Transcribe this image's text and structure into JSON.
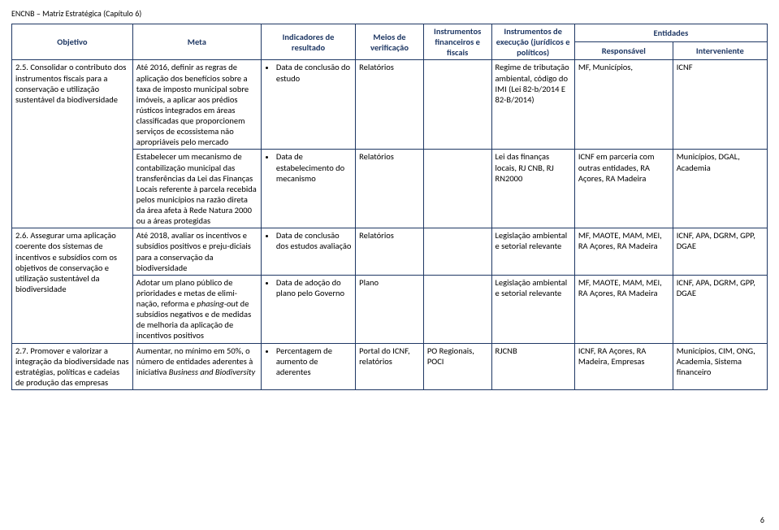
{
  "doc_header": "ENCNB – Matriz Estratégica (Capítulo 6)",
  "page_number": "6",
  "columns": {
    "objetivo": "Objetivo",
    "meta": "Meta",
    "indicadores": "Indicadores de resultado",
    "meios": "Meios de verificação",
    "instr_fin": "Instrumentos financeiros e fiscais",
    "instr_exec": "Instrumentos de execução (jurídicos e políticos)",
    "entidades": "Entidades",
    "responsavel": "Responsável",
    "interveniente": "Interveniente"
  },
  "col_widths": {
    "objetivo": "16%",
    "meta": "17%",
    "indicadores": "12.5%",
    "meios": "9%",
    "instr_fin": "9%",
    "instr_exec": "11%",
    "responsavel": "13%",
    "interveniente": "12.5%"
  },
  "rows": [
    {
      "objetivo": "2.5. Consolidar o contributo dos instrumentos fiscais para a conservação e utilização sustentável da biodiversidade",
      "objetivo_rowspan": 2,
      "meta": "Até 2016, definir as regras de aplicação dos benefícios sobre a taxa de imposto municipal sobre imóveis, a aplicar aos prédios rústicos integrados em áreas classificadas que proporcionem serviços de ecossistema não apropriáveis pelo mercado",
      "indicador": "Data de conclusão do estudo",
      "meios": "Relatórios",
      "instr_fin": "",
      "instr_exec": "Regime de tributação ambiental, código do IMI (Lei 82-b/2014 E 82-B/2014)",
      "responsavel": "MF, Municípios,",
      "interveniente": "ICNF"
    },
    {
      "meta": "Estabelecer um mecanismo de contabilização municipal das transferências da Lei das Finanças Locais referente à parcela recebida pelos municípios na razão direta da área afeta à Rede Natura 2000 ou a áreas protegidas",
      "indicador": "Data de estabelecimento do mecanismo",
      "meios": "Relatórios",
      "instr_fin": "",
      "instr_exec": "Lei das finanças locais, RJ CNB, RJ RN2000",
      "responsavel": "ICNF em parceria com outras entidades, RA Açores, RA Madeira",
      "interveniente": "Municípios, DGAL, Academia"
    },
    {
      "objetivo": "2.6. Assegurar uma aplicação coerente dos sistemas de incentivos e subsídios com os objetivos de conservação e utilização sustentável da biodiversidade",
      "objetivo_rowspan": 2,
      "meta": "Até 2018, avaliar os incentivos e subsídios positivos e preju-diciais para a conservação da biodiversidade",
      "indicador": "Data de conclusão dos estudos avaliação",
      "meios": "Relatórios",
      "instr_fin": "",
      "instr_exec": "Legislação ambiental e setorial relevante",
      "responsavel": "MF, MAOTE, MAM, MEI, RA Açores, RA Madeira",
      "interveniente": "ICNF, APA, DGRM, GPP, DGAE"
    },
    {
      "meta_html": true,
      "meta_prefix": "Adotar um plano público de prioridades e metas de elimi-nação, reforma e ",
      "meta_italic": "phasing-out",
      "meta_suffix": " de subsídios negativos e de medidas de melhoria da aplicação de incentivos positivos",
      "indicador": "Data de adoção do plano pelo Governo",
      "meios": "Plano",
      "instr_fin": "",
      "instr_exec": "Legislação ambiental e setorial relevante",
      "responsavel": "MF, MAOTE, MAM, MEI, RA Açores, RA Madeira",
      "interveniente": "ICNF, APA, DGRM, GPP, DGAE"
    },
    {
      "objetivo": "2.7. Promover e valorizar a integração da biodiversidade nas estratégias, políticas e cadeias de produção das empresas",
      "objetivo_rowspan": 1,
      "meta_html": true,
      "meta_prefix": "Aumentar, no mínimo em 50%, o número de entidades aderentes à iniciativa ",
      "meta_italic": "Business and Biodiversity",
      "meta_suffix": "",
      "indicador": "Percentagem de aumento de aderentes",
      "meios": "Portal do ICNF, relatórios",
      "instr_fin": "PO Regionais, POCI",
      "instr_exec": "RJCNB",
      "responsavel": "ICNF, RA Açores, RA Madeira, Empresas",
      "interveniente": "Municípios, CIM, ONG, Academia, Sistema financeiro"
    }
  ]
}
